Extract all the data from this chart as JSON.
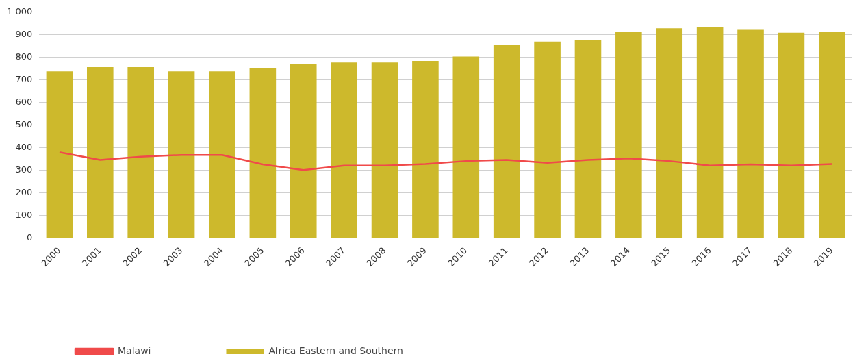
{
  "chart_data": {
    "type": "bar",
    "categories": [
      "2000",
      "2001",
      "2002",
      "2003",
      "2004",
      "2005",
      "2006",
      "2007",
      "2008",
      "2009",
      "2010",
      "2011",
      "2012",
      "2013",
      "2014",
      "2015",
      "2016",
      "2017",
      "2018",
      "2019"
    ],
    "series": [
      {
        "name": "Africa Eastern and Southern",
        "color": "#cdb92c",
        "values": [
          738,
          757,
          757,
          738,
          738,
          752,
          772,
          777,
          777,
          784,
          804,
          855,
          870,
          875,
          914,
          929,
          934,
          922,
          909,
          914
        ]
      },
      {
        "name": "Malawi",
        "type": "line",
        "color": "#f04a4a",
        "marker": "none",
        "values": [
          380,
          346,
          360,
          368,
          368,
          326,
          301,
          321,
          321,
          328,
          341,
          346,
          333,
          346,
          353,
          341,
          321,
          326,
          321,
          328
        ]
      }
    ],
    "ylim": [
      0,
      1000
    ],
    "yticks": [
      0,
      100,
      200,
      300,
      400,
      500,
      600,
      700,
      800,
      900,
      {
        "value": 1000,
        "label": "1 000"
      }
    ],
    "grid": "y",
    "legend": "bottom left"
  }
}
